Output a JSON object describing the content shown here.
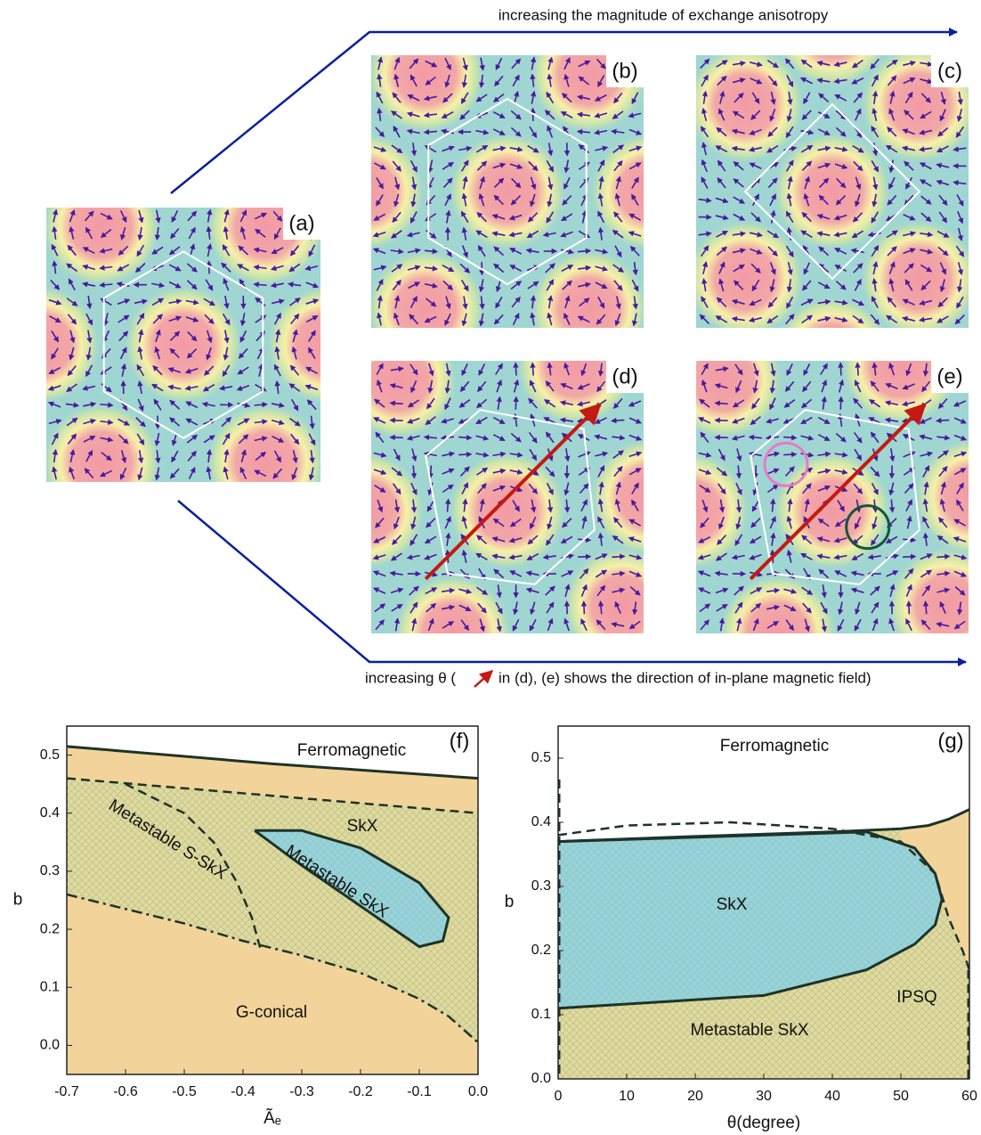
{
  "annotations": {
    "top_arrow": "increasing the magnitude of exchange anisotropy",
    "bottom_arrow_pre": "increasing θ (",
    "bottom_arrow_post": "in (d), (e) shows the direction of in-plane magnetic field)"
  },
  "panels": [
    "(a)",
    "(b)",
    "(c)",
    "(d)",
    "(e)"
  ],
  "chart_data": [
    {
      "type": "phase",
      "panel_label": "(f)",
      "x_label": "Ãₑ",
      "y_label": "b",
      "xlim": [
        -0.7,
        0
      ],
      "ylim": [
        -0.05,
        0.55
      ],
      "xticks": [
        -0.7,
        -0.6,
        -0.5,
        -0.4,
        -0.3,
        -0.2,
        -0.1,
        {
          "value": 0,
          "label": "0.0"
        }
      ],
      "yticks": [
        {
          "value": 0,
          "label": "0.0"
        },
        0.1,
        0.2,
        0.3,
        0.4,
        0.5
      ],
      "colors": {
        "ordered": "#f2d49a",
        "metastable": "#dfdba0",
        "skx": "#8dd6ea",
        "line": "#1e3328"
      },
      "series": [
        {
          "style": "solid",
          "x": [
            -0.7,
            -0.35,
            0
          ],
          "values": [
            0.515,
            0.485,
            0.46
          ]
        },
        {
          "style": "dashed",
          "x": [
            -0.7,
            -0.35,
            0
          ],
          "values": [
            0.46,
            0.43,
            0.4
          ]
        },
        {
          "style": "dashdot",
          "x": [
            -0.7,
            -0.6,
            -0.5,
            -0.4,
            -0.3,
            -0.2,
            -0.1,
            -0.05,
            0
          ],
          "values": [
            0.26,
            0.235,
            0.21,
            0.18,
            0.155,
            0.125,
            0.08,
            0.05,
            0.005
          ]
        },
        {
          "style": "dashed",
          "x": [
            -0.6,
            -0.5,
            -0.45,
            -0.41,
            -0.385,
            -0.37
          ],
          "values": [
            0.45,
            0.4,
            0.35,
            0.28,
            0.22,
            0.165
          ]
        },
        {
          "style": "solid",
          "x": [
            -0.38,
            -0.3,
            -0.2,
            -0.1,
            -0.05,
            -0.06,
            -0.1,
            -0.2,
            -0.3,
            -0.38
          ],
          "values": [
            0.37,
            0.37,
            0.34,
            0.28,
            0.22,
            0.18,
            0.17,
            0.24,
            0.31,
            0.37
          ]
        }
      ],
      "region_labels": [
        "Ferromagnetic",
        "Metastable S-SkX",
        "Metastable SkX",
        "SkX",
        "G-conical"
      ]
    },
    {
      "type": "phase",
      "panel_label": "(g)",
      "x_label": "θ(degree)",
      "y_label": "b",
      "xlim": [
        0,
        60
      ],
      "ylim": [
        0,
        0.55
      ],
      "xticks": [
        0,
        10,
        20,
        30,
        40,
        50,
        60
      ],
      "yticks": [
        {
          "value": 0,
          "label": "0.0"
        },
        0.1,
        0.2,
        0.3,
        0.4,
        0.5
      ],
      "colors": {
        "ordered": "#f2d49a",
        "metastable": "#dfdba0",
        "skx": "#8dd6ea",
        "line": "#1e3328"
      },
      "series": [
        {
          "style": "solid",
          "x": [
            0,
            20,
            40,
            50,
            54,
            57,
            60
          ],
          "values": [
            0.37,
            0.378,
            0.385,
            0.39,
            0.395,
            0.405,
            0.42
          ]
        },
        {
          "style": "dashed",
          "x": [
            0,
            10,
            25,
            40,
            50,
            55,
            57,
            59,
            60
          ],
          "values": [
            0.38,
            0.395,
            0.4,
            0.39,
            0.37,
            0.32,
            0.25,
            0.2,
            0.17
          ]
        },
        {
          "style": "solid",
          "x": [
            0,
            45,
            52,
            55,
            56,
            55,
            52,
            45,
            30,
            15,
            0
          ],
          "values": [
            0.37,
            0.385,
            0.36,
            0.32,
            0.28,
            0.24,
            0.21,
            0.17,
            0.13,
            0.12,
            0.11
          ]
        }
      ],
      "region_labels": [
        "Ferromagnetic",
        "SkX",
        "IPSQ",
        "Metastable SkX"
      ]
    }
  ]
}
